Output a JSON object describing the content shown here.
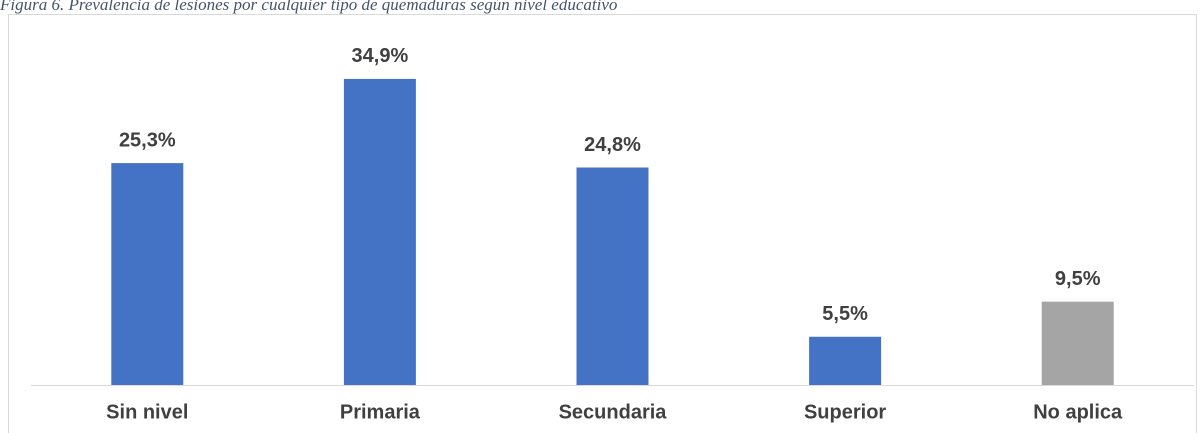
{
  "chart_data": {
    "type": "bar",
    "title": "Figura 6. Prevalencia de lesiones por cualquier tipo de quemaduras según nivel educativo",
    "categories": [
      "Sin nivel",
      "Primaria",
      "Secundaria",
      "Superior",
      "No aplica"
    ],
    "values": [
      25.3,
      34.9,
      24.8,
      5.5,
      9.5
    ],
    "value_labels": [
      "25,3%",
      "34,9%",
      "24,8%",
      "5,5%",
      "9,5%"
    ],
    "colors": [
      "#4472c4",
      "#4472c4",
      "#4472c4",
      "#4472c4",
      "#a5a5a5"
    ]
  }
}
